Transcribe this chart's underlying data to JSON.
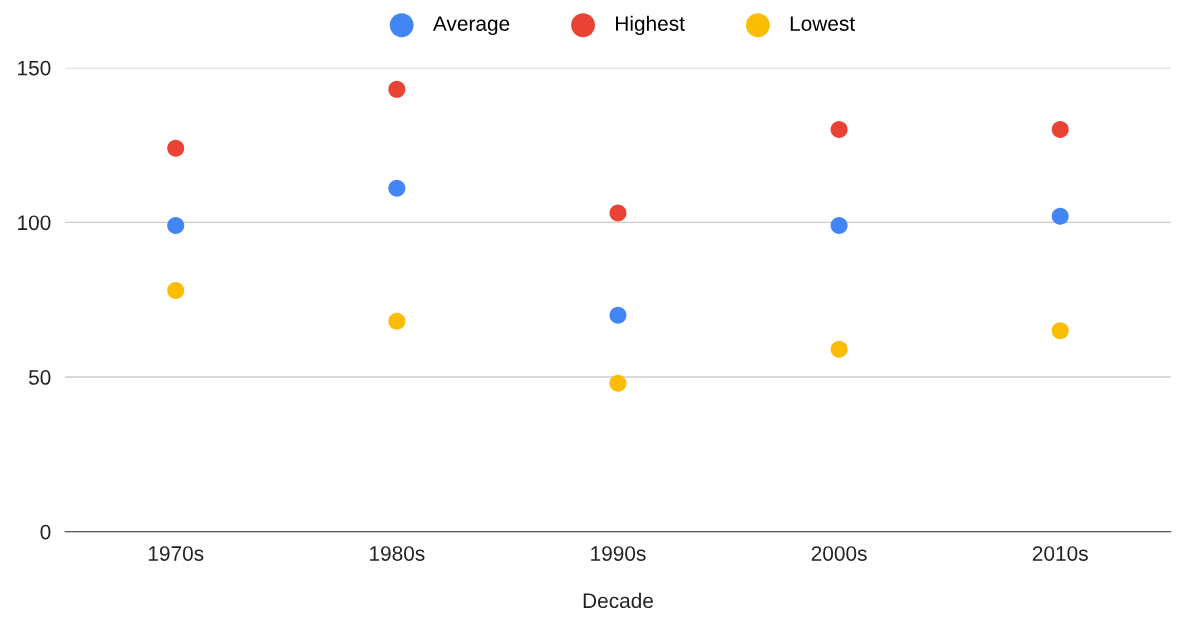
{
  "chart_data": {
    "type": "scatter",
    "xlabel": "Decade",
    "categories": [
      "1970s",
      "1980s",
      "1990s",
      "2000s",
      "2010s"
    ],
    "series": [
      {
        "name": "Average",
        "color": "#4285f4",
        "values": [
          99,
          111,
          70,
          99,
          102
        ]
      },
      {
        "name": "Highest",
        "color": "#ea4335",
        "values": [
          124,
          143,
          103,
          130,
          130
        ]
      },
      {
        "name": "Lowest",
        "color": "#fbbc04",
        "values": [
          78,
          68,
          48,
          59,
          65
        ]
      }
    ],
    "ylim": [
      0,
      150
    ],
    "yticks": [
      0,
      50,
      100,
      150
    ],
    "grid": "y",
    "legend": "top",
    "marker": "circle"
  }
}
